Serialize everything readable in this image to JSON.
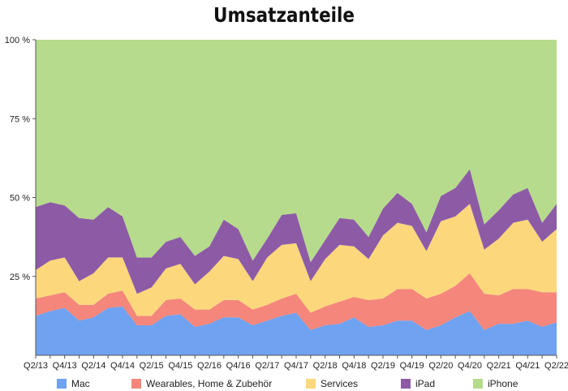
{
  "chart_data": {
    "type": "area",
    "title": "Umsatzanteile",
    "stacked": true,
    "ylim": [
      0,
      100
    ],
    "yticks": [
      "100 %",
      "75 %",
      "50 %",
      "25 %"
    ],
    "ytick_values": [
      100,
      75,
      50,
      25
    ],
    "x": [
      "Q2/13",
      "Q3/13",
      "Q4/13",
      "Q1/14",
      "Q2/14",
      "Q3/14",
      "Q4/14",
      "Q1/15",
      "Q2/15",
      "Q3/15",
      "Q4/15",
      "Q1/16",
      "Q2/16",
      "Q3/16",
      "Q4/16",
      "Q1/17",
      "Q2/17",
      "Q3/17",
      "Q4/17",
      "Q1/18",
      "Q2/18",
      "Q3/18",
      "Q4/18",
      "Q1/19",
      "Q2/19",
      "Q3/19",
      "Q4/19",
      "Q1/20",
      "Q2/20",
      "Q3/20",
      "Q4/20",
      "Q1/21",
      "Q2/21",
      "Q3/21",
      "Q4/21",
      "Q1/22",
      "Q2/22"
    ],
    "xticks": [
      "Q2/13",
      "Q4/13",
      "Q2/14",
      "Q4/14",
      "Q2/15",
      "Q4/15",
      "Q2/16",
      "Q4/16",
      "Q2/17",
      "Q4/17",
      "Q2/18",
      "Q4/18",
      "Q2/19",
      "Q4/19",
      "Q2/20",
      "Q4/20",
      "Q2/21",
      "Q4/21",
      "Q2/22"
    ],
    "series": [
      {
        "name": "Mac",
        "color": "#6fa2f0",
        "values": [
          12.5,
          14,
          15,
          11,
          12,
          15,
          15.5,
          9.5,
          9.5,
          12.5,
          13,
          9,
          10,
          12,
          12,
          9.5,
          11,
          12.5,
          13.5,
          8,
          9.5,
          10,
          12,
          9,
          9.5,
          11,
          11,
          8,
          9.5,
          12,
          14,
          8,
          10,
          10,
          11,
          9,
          10.5
        ]
      },
      {
        "name": "Wearables, Home & Zubehör",
        "color": "#f4867c",
        "values": [
          5.5,
          5,
          5,
          5,
          4,
          4.5,
          5,
          3,
          3,
          5,
          5,
          5.5,
          4.5,
          5.5,
          5.5,
          5,
          5,
          5.5,
          6,
          5.5,
          6,
          7,
          6.5,
          8.5,
          8.5,
          10,
          10,
          10,
          10,
          10,
          12,
          11.5,
          9,
          11,
          10,
          11,
          9.5
        ]
      },
      {
        "name": "Services",
        "color": "#fcd77c",
        "values": [
          9,
          11,
          11,
          7.5,
          10,
          11.5,
          10.5,
          7,
          9,
          10,
          11,
          8,
          12,
          14,
          13,
          9,
          15,
          17,
          16,
          10,
          15,
          18,
          16,
          13,
          20,
          21,
          20,
          15,
          23,
          22,
          22,
          14,
          18,
          21,
          22,
          16,
          20
        ]
      },
      {
        "name": "iPad",
        "color": "#8d5ba6",
        "values": [
          20,
          18.5,
          16.5,
          20,
          17,
          16,
          13,
          11.5,
          9.5,
          8.5,
          8.5,
          9,
          8,
          11.5,
          9.5,
          6.5,
          6,
          9.5,
          9.5,
          6,
          6,
          8.5,
          8.5,
          7,
          8.5,
          9.5,
          7,
          6,
          8,
          9,
          11,
          8,
          9,
          9,
          10,
          6,
          8
        ]
      },
      {
        "name": "iPhone",
        "color": "#b6db8c",
        "values": [
          53,
          51.5,
          52.5,
          56.5,
          57,
          53,
          56,
          69,
          69,
          64,
          62.5,
          68.5,
          65.5,
          57,
          60,
          70,
          63,
          55.5,
          55,
          70.5,
          63.5,
          56.5,
          57,
          62.5,
          53.5,
          48.5,
          52,
          61,
          49.5,
          47,
          41,
          58.5,
          54,
          49,
          47,
          58,
          52
        ]
      }
    ],
    "legend": "bottom"
  }
}
